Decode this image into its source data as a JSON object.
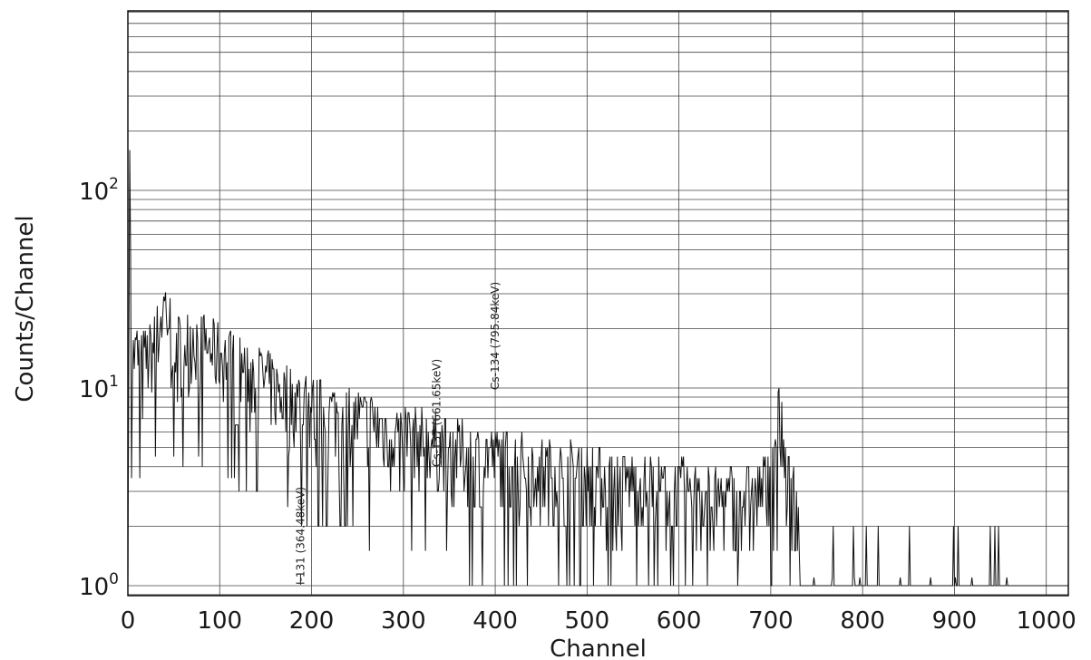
{
  "chart_data": {
    "type": "line",
    "title": "",
    "xlabel": "Channel",
    "ylabel": "Counts/Channel",
    "xlim": [
      0,
      1024
    ],
    "ylim": [
      0.89,
      810
    ],
    "yscale": "log",
    "grid": true,
    "legend": "none",
    "x_ticks": [
      {
        "value": 0,
        "label": "0"
      },
      {
        "value": 100,
        "label": "100"
      },
      {
        "value": 200,
        "label": "200"
      },
      {
        "value": 300,
        "label": "300"
      },
      {
        "value": 400,
        "label": "400"
      },
      {
        "value": 500,
        "label": "500"
      },
      {
        "value": 600,
        "label": "600"
      },
      {
        "value": 700,
        "label": "700"
      },
      {
        "value": 800,
        "label": "800"
      },
      {
        "value": 900,
        "label": "900"
      },
      {
        "value": 1000,
        "label": "1000"
      }
    ],
    "y_ticks": [
      {
        "value": 1,
        "base": "10",
        "exp": "0"
      },
      {
        "value": 10,
        "base": "10",
        "exp": "1"
      },
      {
        "value": 100,
        "base": "10",
        "exp": "2"
      }
    ],
    "annotations": [
      {
        "channel": 188,
        "text": "I-131 (364.48keV)"
      },
      {
        "channel": 336,
        "text": "Cs-137 (661.65keV)"
      },
      {
        "channel": 400,
        "text": "Cs-134 (795.84keV)"
      }
    ],
    "series": [
      {
        "color": "#111111",
        "envelope": [
          {
            "x": 0,
            "y": 1
          },
          {
            "x": 2,
            "y": 160
          },
          {
            "x": 4,
            "y": 14
          },
          {
            "x": 10,
            "y": 15
          },
          {
            "x": 20,
            "y": 14
          },
          {
            "x": 30,
            "y": 17
          },
          {
            "x": 40,
            "y": 27
          },
          {
            "x": 50,
            "y": 18
          },
          {
            "x": 60,
            "y": 16
          },
          {
            "x": 70,
            "y": 19
          },
          {
            "x": 80,
            "y": 17
          },
          {
            "x": 90,
            "y": 16
          },
          {
            "x": 100,
            "y": 15
          },
          {
            "x": 120,
            "y": 13
          },
          {
            "x": 140,
            "y": 12
          },
          {
            "x": 160,
            "y": 10
          },
          {
            "x": 180,
            "y": 9
          },
          {
            "x": 200,
            "y": 8
          },
          {
            "x": 250,
            "y": 7
          },
          {
            "x": 300,
            "y": 6
          },
          {
            "x": 350,
            "y": 5
          },
          {
            "x": 400,
            "y": 4.5
          },
          {
            "x": 450,
            "y": 4
          },
          {
            "x": 500,
            "y": 3.6
          },
          {
            "x": 550,
            "y": 3.3
          },
          {
            "x": 600,
            "y": 3
          },
          {
            "x": 650,
            "y": 2.8
          },
          {
            "x": 690,
            "y": 3
          },
          {
            "x": 700,
            "y": 4
          },
          {
            "x": 708,
            "y": 7.5
          },
          {
            "x": 712,
            "y": 6
          },
          {
            "x": 718,
            "y": 3.5
          },
          {
            "x": 722,
            "y": 3
          },
          {
            "x": 730,
            "y": 2.5
          },
          {
            "x": 732,
            "y": 1.1
          },
          {
            "x": 800,
            "y": 1
          },
          {
            "x": 900,
            "y": 1
          },
          {
            "x": 1024,
            "y": 1
          }
        ]
      }
    ]
  }
}
